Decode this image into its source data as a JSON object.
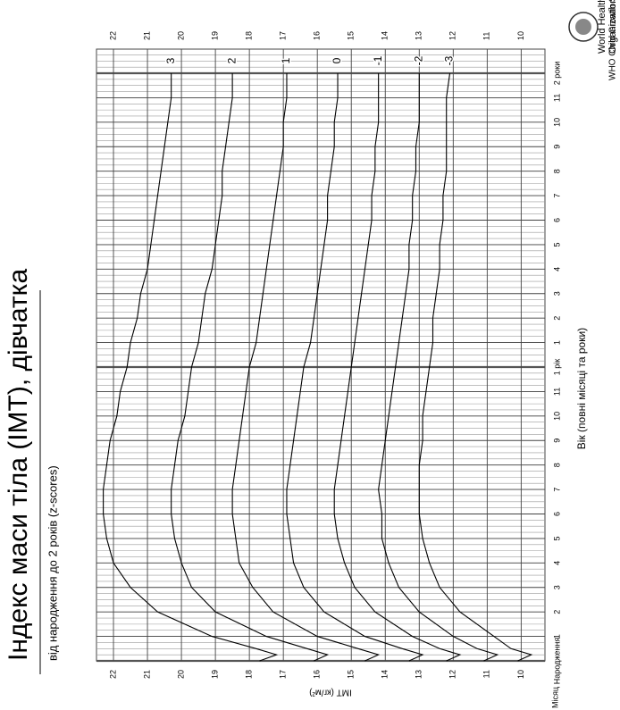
{
  "chart_data": {
    "type": "line",
    "title": "Індекс маси тіла (ІМТ), дівчатка",
    "subtitle": "від народження до 2 років (z-scores)",
    "x_label": "Вік (повні місяці та роки)",
    "y_label": "ІМТ (кг/м²)",
    "corner_label": "Місяц",
    "source": "WHO Child Growth Standards",
    "logo_text": [
      "World Health",
      "Organization"
    ],
    "x": [
      0,
      0.25,
      0.5,
      1,
      2,
      3,
      4,
      5,
      6,
      7,
      8,
      9,
      10,
      11,
      12,
      13,
      14,
      15,
      16,
      17,
      18,
      19,
      20,
      21,
      22,
      23,
      24
    ],
    "xlim": [
      0,
      24
    ],
    "xticks": [
      {
        "value": 0,
        "label": "Народження"
      },
      1,
      2,
      3,
      4,
      5,
      6,
      7,
      8,
      9,
      10,
      11,
      {
        "value": 12,
        "label": "1 рік"
      },
      {
        "value": 13,
        "label": "1"
      },
      {
        "value": 14,
        "label": "2"
      },
      {
        "value": 15,
        "label": "3"
      },
      {
        "value": 16,
        "label": "4"
      },
      {
        "value": 17,
        "label": "5"
      },
      {
        "value": 18,
        "label": "6"
      },
      {
        "value": 19,
        "label": "7"
      },
      {
        "value": 20,
        "label": "8"
      },
      {
        "value": 21,
        "label": "9"
      },
      {
        "value": 22,
        "label": "10"
      },
      {
        "value": 23,
        "label": "11"
      },
      {
        "value": 24,
        "label": "2 роки"
      }
    ],
    "ylim": [
      9.3,
      22.5
    ],
    "yticks": [
      10,
      11,
      12,
      13,
      14,
      15,
      16,
      17,
      18,
      19,
      20,
      21,
      22
    ],
    "grid": true,
    "series": [
      {
        "name": "3",
        "color": "#000000",
        "values": [
          17.7,
          17.2,
          17.8,
          19.1,
          20.7,
          21.5,
          22.0,
          22.2,
          22.3,
          22.3,
          22.2,
          22.1,
          21.9,
          21.8,
          21.6,
          21.5,
          21.3,
          21.2,
          21.0,
          20.9,
          20.8,
          20.7,
          20.6,
          20.5,
          20.4,
          20.3,
          20.3
        ]
      },
      {
        "name": "2",
        "color": "#000000",
        "values": [
          16.1,
          15.7,
          16.3,
          17.5,
          19.0,
          19.7,
          20.0,
          20.2,
          20.3,
          20.3,
          20.2,
          20.1,
          19.9,
          19.8,
          19.7,
          19.5,
          19.4,
          19.3,
          19.1,
          19.0,
          18.9,
          18.8,
          18.8,
          18.7,
          18.6,
          18.5,
          18.5
        ]
      },
      {
        "name": "1",
        "color": "#000000",
        "values": [
          14.6,
          14.2,
          14.8,
          16.0,
          17.3,
          17.9,
          18.3,
          18.4,
          18.5,
          18.5,
          18.4,
          18.3,
          18.2,
          18.1,
          18.0,
          17.8,
          17.7,
          17.6,
          17.5,
          17.4,
          17.3,
          17.2,
          17.1,
          17.0,
          17.0,
          16.9,
          16.9
        ]
      },
      {
        "name": "0",
        "color": "#000000",
        "values": [
          13.3,
          12.9,
          13.5,
          14.6,
          15.8,
          16.4,
          16.7,
          16.8,
          16.9,
          16.9,
          16.8,
          16.7,
          16.6,
          16.5,
          16.4,
          16.2,
          16.1,
          16.0,
          15.9,
          15.8,
          15.7,
          15.7,
          15.6,
          15.5,
          15.5,
          15.4,
          15.4
        ]
      },
      {
        "name": "-1",
        "color": "#000000",
        "values": [
          12.2,
          11.8,
          12.4,
          13.2,
          14.3,
          14.9,
          15.2,
          15.4,
          15.5,
          15.5,
          15.4,
          15.3,
          15.2,
          15.1,
          15.0,
          14.9,
          14.8,
          14.7,
          14.6,
          14.5,
          14.4,
          14.4,
          14.3,
          14.3,
          14.2,
          14.2,
          14.2
        ]
      },
      {
        "name": "-2",
        "color": "#000000",
        "values": [
          11.1,
          10.7,
          11.3,
          12.0,
          13.0,
          13.6,
          13.9,
          14.1,
          14.1,
          14.2,
          14.1,
          14.0,
          13.9,
          13.8,
          13.7,
          13.6,
          13.5,
          13.4,
          13.3,
          13.3,
          13.2,
          13.2,
          13.1,
          13.1,
          13.0,
          13.0,
          13.0
        ]
      },
      {
        "name": "-3",
        "color": "#000000",
        "values": [
          10.1,
          9.7,
          10.3,
          10.8,
          11.8,
          12.4,
          12.7,
          12.9,
          13.0,
          13.0,
          13.0,
          12.9,
          12.9,
          12.8,
          12.7,
          12.6,
          12.6,
          12.5,
          12.4,
          12.4,
          12.3,
          12.3,
          12.2,
          12.2,
          12.2,
          12.2,
          12.1
        ]
      }
    ]
  }
}
